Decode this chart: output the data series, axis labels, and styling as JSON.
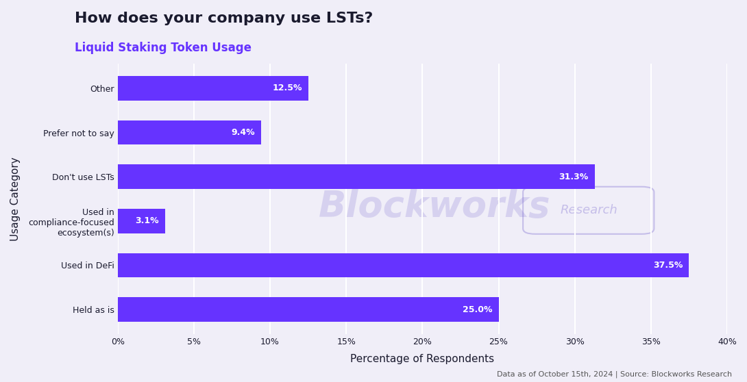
{
  "title": "How does your company use LSTs?",
  "subtitle": "Liquid Staking Token Usage",
  "title_color": "#1a1a2e",
  "subtitle_color": "#6633ff",
  "xlabel": "Percentage of Respondents",
  "ylabel": "Usage Category",
  "categories": [
    "Held as is",
    "Used in DeFi",
    "Used in\ncompliance-focused\necosystem(s)",
    "Don't use LSTs",
    "Prefer not to say",
    "Other"
  ],
  "values": [
    25.0,
    37.5,
    3.1,
    31.3,
    9.4,
    12.5
  ],
  "bar_color": "#6633ff",
  "label_color": "#ffffff",
  "background_color": "#f0eef8",
  "grid_color": "#ffffff",
  "footnote": "Data as of October 15th, 2024 | Source: Blockworks Research",
  "xlim": [
    0,
    40
  ],
  "xticks": [
    0,
    5,
    10,
    15,
    20,
    25,
    30,
    35,
    40
  ],
  "xtick_labels": [
    "0%",
    "5%",
    "10%",
    "15%",
    "20%",
    "25%",
    "30%",
    "35%",
    "40%"
  ],
  "label_fontsize": 9,
  "tick_fontsize": 9,
  "title_fontsize": 16,
  "subtitle_fontsize": 12,
  "bar_label_fontsize": 9,
  "footnote_fontsize": 8
}
